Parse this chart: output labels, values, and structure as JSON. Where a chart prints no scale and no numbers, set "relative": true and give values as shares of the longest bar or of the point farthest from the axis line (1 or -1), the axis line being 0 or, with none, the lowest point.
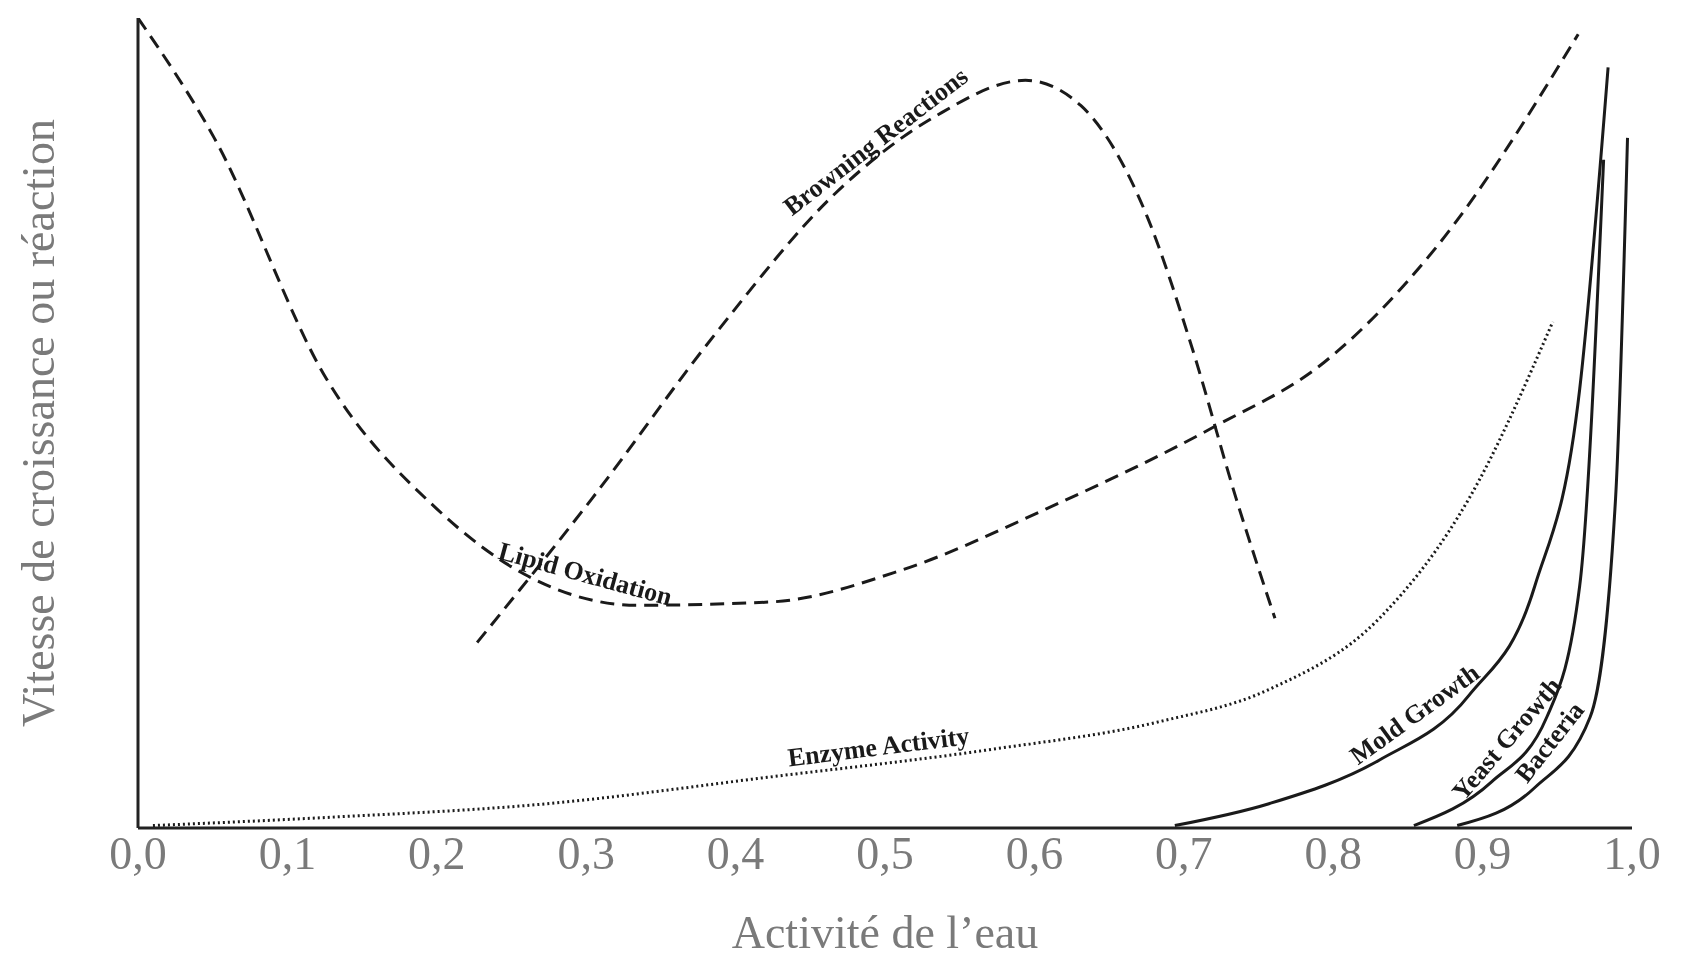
{
  "chart_data": {
    "type": "line",
    "relative": true,
    "xlabel": "Activité de l’eau",
    "ylabel": "Vitesse de croissance ou réaction",
    "xlim": [
      0,
      1
    ],
    "xticks": [
      {
        "value": 0,
        "label": "0,0"
      },
      {
        "value": 0.1,
        "label": "0,1"
      },
      {
        "value": 0.2,
        "label": "0,2"
      },
      {
        "value": 0.3,
        "label": "0,3"
      },
      {
        "value": 0.4,
        "label": "0,4"
      },
      {
        "value": 0.5,
        "label": "0,5"
      },
      {
        "value": 0.6,
        "label": "0,6"
      },
      {
        "value": 0.7,
        "label": "0,7"
      },
      {
        "value": 0.8,
        "label": "0,8"
      },
      {
        "value": 0.9,
        "label": "0,9"
      },
      {
        "value": 1,
        "label": "1,0"
      }
    ],
    "grid": false,
    "legend": false,
    "marker": "none",
    "series": [
      {
        "name": "Lipid Oxidation",
        "color": "#1a1a1a",
        "line_style": "dashed",
        "x": [
          0,
          0.051,
          0.126,
          0.2,
          0.259,
          0.334,
          0.423,
          0.512,
          0.608,
          0.72,
          0.794,
          0.869,
          0.964
        ],
        "values": [
          1,
          0.852,
          0.555,
          0.394,
          0.313,
          0.275,
          0.279,
          0.319,
          0.394,
          0.495,
          0.575,
          0.717,
          0.98
        ]
      },
      {
        "name": "Browning Reactions",
        "color": "#1a1a1a",
        "line_style": "dashed",
        "x": [
          0.227,
          0.304,
          0.386,
          0.467,
          0.534,
          0.594,
          0.631,
          0.675,
          0.705,
          0.735,
          0.761
        ],
        "values": [
          0.229,
          0.407,
          0.609,
          0.784,
          0.879,
          0.923,
          0.892,
          0.757,
          0.596,
          0.407,
          0.259
        ]
      },
      {
        "name": "Enzyme Activity",
        "color": "#1a1a1a",
        "line_style": "dotted",
        "x": [
          0.01,
          0.126,
          0.274,
          0.423,
          0.571,
          0.683,
          0.757,
          0.831,
          0.891,
          0.947
        ],
        "values": [
          0.003,
          0.013,
          0.03,
          0.063,
          0.097,
          0.131,
          0.171,
          0.259,
          0.407,
          0.625
        ]
      },
      {
        "name": "Mold Growth",
        "color": "#1a1a1a",
        "line_style": "solid",
        "x": [
          0.694,
          0.757,
          0.831,
          0.891,
          0.935,
          0.965,
          0.984
        ],
        "values": [
          0.003,
          0.03,
          0.084,
          0.164,
          0.299,
          0.542,
          0.939
        ]
      },
      {
        "name": "Yeast Growth",
        "color": "#1a1a1a",
        "line_style": "solid",
        "x": [
          0.854,
          0.906,
          0.943,
          0.965,
          0.981
        ],
        "values": [
          0.003,
          0.057,
          0.137,
          0.299,
          0.825
        ]
      },
      {
        "name": "Bacteria",
        "color": "#1a1a1a",
        "line_style": "solid",
        "x": [
          0.883,
          0.935,
          0.972,
          0.989,
          0.997
        ],
        "values": [
          0.003,
          0.05,
          0.137,
          0.407,
          0.852
        ]
      }
    ]
  }
}
